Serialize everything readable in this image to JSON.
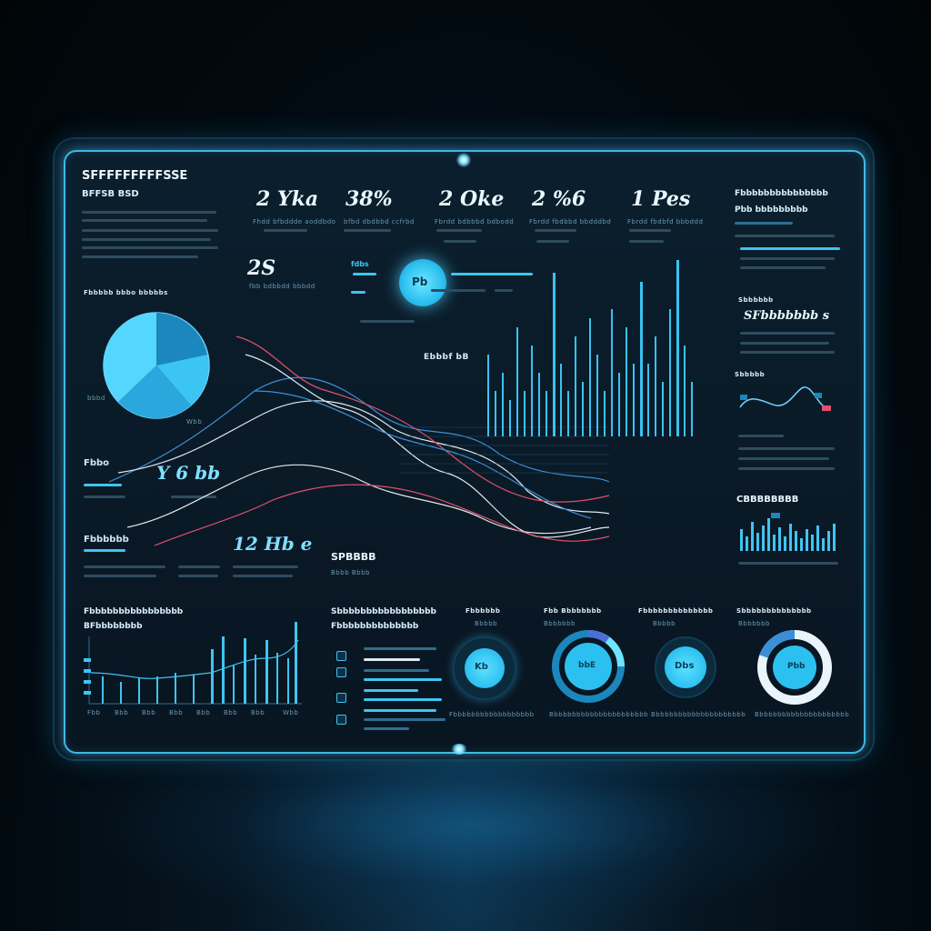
{
  "header": {
    "title": "SFFFFFFFFFSSE",
    "subtitle": "BFFSB BSD"
  },
  "kpis": [
    {
      "value": "2 Yka",
      "caption": "Fhdd bfbddde aoddbdo"
    },
    {
      "value": "38%",
      "caption": "bfbd dbdbbd ccfrbd"
    },
    {
      "value": "2 Oke",
      "caption": "Fbrdd bdbbbd bdbodd"
    },
    {
      "value": "2 %6",
      "caption": "Fbrdd fbdbbd bbdddbd"
    },
    {
      "value": "1 Pes",
      "caption": "Fbrdd fbdbfd bbbddd"
    }
  ],
  "kpi_secondary": [
    {
      "value": "2S",
      "caption": "fbb bdbbdd bbbdd"
    },
    {
      "value": "fdbs",
      "caption": "bbd bdbbd"
    }
  ],
  "circle_badge": {
    "value": "Pb"
  },
  "left_section": {
    "label": "Fbbbbb bbbo bbbbbs",
    "pie_label_a": "bbbd",
    "pie_label_b": "Wbb",
    "bottom_title_1": "Fbbo",
    "bottom_title_2": "Fbbbbbb",
    "value_1": "Y 6 bb",
    "value_2": "12 Hb e"
  },
  "center": {
    "label_1": "Ebbbf bB",
    "label_2": "SPBBBB",
    "label_3": "Bbbb Bbbb"
  },
  "right_column": {
    "title_1": "Fbbbbbbbbbbbbbbb",
    "title_2": "Pbb bbbbbbbbb",
    "title_3": "Sbbbbbb",
    "title_4": "SFbbbbbbb s",
    "title_5": "Sbbbbb",
    "title_6": "CBBBBBBBB"
  },
  "bottom_section": {
    "chart_title": "Fbbbbbbbbbbbbbbbb",
    "chart_subtitle": "BFbbbbbbbb",
    "list_title": "Sbbbbbbbbbbbbbbbbb",
    "list_subtitle": "Fbbbbbbbbbbbbbb",
    "tick_labels": [
      "Fbb",
      "Bbb",
      "Bbb",
      "Bbb",
      "Bbb",
      "Bbb",
      "Bbb",
      "Wbb"
    ],
    "donuts": [
      {
        "title": "Fbbbbbb",
        "sub": "Bbbbb",
        "value": "Kb",
        "caption": "Fbbbbbbbbbbbbbbbbbb"
      },
      {
        "title": "Fbb Bbbbbbbb",
        "sub": "Bbbbbbb",
        "value": "bbE",
        "caption": "Bbbbbbbbbbbbbbbbbbbbbb"
      },
      {
        "title": "Fbbbbbbbbbbbbbb",
        "sub": "Bbbbb",
        "value": "Dbs",
        "caption": "Bbbbbbbbbbbbbbbbbbbbb"
      },
      {
        "title": "Sbbbbbbbbbbbbbb",
        "sub": "Bbbbbbb",
        "value": "Pbb",
        "caption": "Bbbbbbbbbbbbbbbbbbbbb"
      }
    ]
  },
  "colors": {
    "accent": "#3fc5f0",
    "accent_bright": "#6fe3ff",
    "panel_bg": "#0a1926",
    "line_red": "#e0506a",
    "line_blue": "#3b8fd6"
  }
}
